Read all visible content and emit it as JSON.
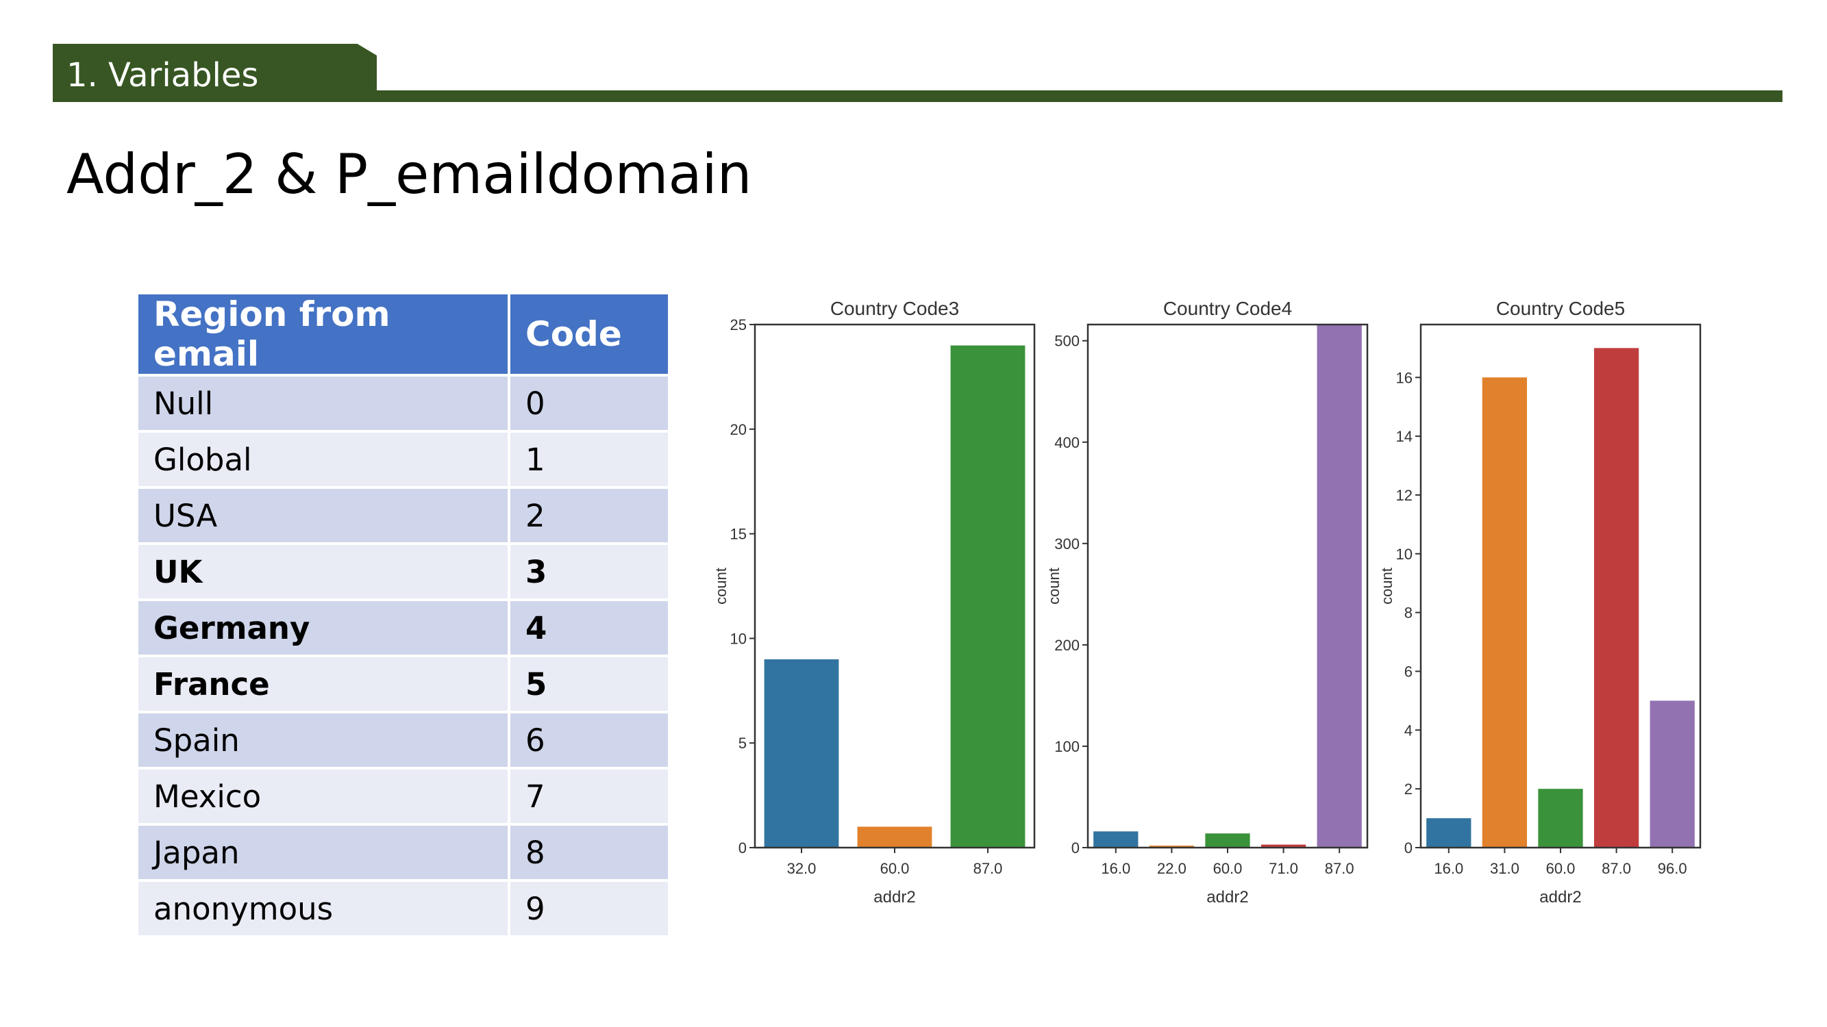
{
  "header": {
    "section_label": "1. Variables",
    "title": "Addr_2 & P_emaildomain"
  },
  "table": {
    "headers": [
      "Region from email",
      "Code"
    ],
    "rows": [
      {
        "region": "Null",
        "code": "0",
        "bold": false
      },
      {
        "region": "Global",
        "code": "1",
        "bold": false
      },
      {
        "region": "USA",
        "code": "2",
        "bold": false
      },
      {
        "region": "UK",
        "code": "3",
        "bold": true
      },
      {
        "region": "Germany",
        "code": "4",
        "bold": true
      },
      {
        "region": "France",
        "code": "5",
        "bold": true
      },
      {
        "region": "Spain",
        "code": "6",
        "bold": false
      },
      {
        "region": "Mexico",
        "code": "7",
        "bold": false
      },
      {
        "region": "Japan",
        "code": "8",
        "bold": false
      },
      {
        "region": "anonymous",
        "code": "9",
        "bold": false
      }
    ]
  },
  "colors": {
    "header_green": "#375623",
    "table_header_blue": "#4472c4",
    "row_dark": "#cfd5ea",
    "row_light": "#e9ebf5"
  },
  "chart_data": [
    {
      "type": "bar",
      "title": "Country Code3",
      "xlabel": "addr2",
      "ylabel": "count",
      "categories": [
        "32.0",
        "60.0",
        "87.0"
      ],
      "values": [
        9,
        1,
        24
      ],
      "colors": [
        "#3274a1",
        "#e1812c",
        "#3a923a"
      ],
      "ylim": [
        0,
        25
      ],
      "yticks": [
        0,
        5,
        10,
        15,
        20,
        25
      ]
    },
    {
      "type": "bar",
      "title": "Country Code4",
      "xlabel": "addr2",
      "ylabel": "count",
      "categories": [
        "16.0",
        "22.0",
        "60.0",
        "71.0",
        "87.0"
      ],
      "values": [
        16,
        2,
        14,
        3,
        516
      ],
      "colors": [
        "#3274a1",
        "#e1812c",
        "#3a923a",
        "#c03d3e",
        "#9372b2"
      ],
      "ylim": [
        0,
        516
      ],
      "yticks": [
        0,
        100,
        200,
        300,
        400,
        500
      ]
    },
    {
      "type": "bar",
      "title": "Country Code5",
      "xlabel": "addr2",
      "ylabel": "count",
      "categories": [
        "16.0",
        "31.0",
        "60.0",
        "87.0",
        "96.0"
      ],
      "values": [
        1,
        16,
        2,
        17,
        5
      ],
      "colors": [
        "#3274a1",
        "#e1812c",
        "#3a923a",
        "#c03d3e",
        "#9372b2"
      ],
      "ylim": [
        0,
        17.8
      ],
      "yticks": [
        0,
        2,
        4,
        6,
        8,
        10,
        12,
        14,
        16
      ]
    }
  ]
}
